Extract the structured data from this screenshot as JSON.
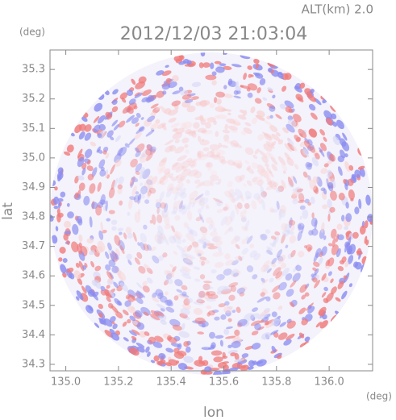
{
  "chart_data": {
    "type": "radar-map",
    "title": "2012/12/03 21:03:04",
    "subtitle": "ALT(km) 2.0",
    "x_label": "lon",
    "y_label": "lat",
    "x_unit": "(deg)",
    "y_unit": "(deg)",
    "xlim": [
      134.94,
      136.165
    ],
    "ylim": [
      34.278,
      35.366
    ],
    "xticks": [
      {
        "value": 135,
        "label": "135.0"
      },
      135.2,
      135.4,
      135.6,
      135.8,
      {
        "value": 136,
        "label": "136.0"
      }
    ],
    "yticks": [
      34.3,
      34.4,
      34.5,
      34.6,
      34.7,
      34.8,
      34.9,
      {
        "value": 35,
        "label": "35.0"
      },
      35.1,
      35.2,
      35.3
    ]
  }
}
